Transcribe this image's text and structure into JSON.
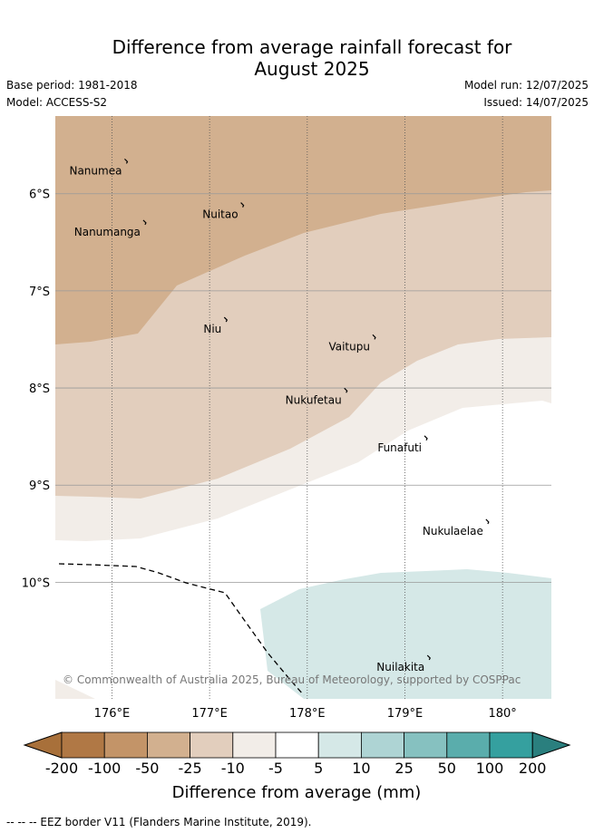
{
  "title": "Difference from average rainfall forecast for August 2025",
  "title_line1": "Difference from average rainfall forecast for",
  "title_line2": "August 2025",
  "base_period": "Base period: 1981-2018",
  "model": "Model: ACCESS-S2",
  "model_run": "Model run: 12/07/2025",
  "issued": "Issued: 14/07/2025",
  "copyright": "© Commonwealth of Australia 2025, Bureau of Meteorology, supported by COSPPac",
  "footnote": "-- --  -- EEZ border V11 (Flanders Marine Institute, 2019).",
  "map": {
    "lon_range": [
      175.42,
      180.5
    ],
    "lat_range": [
      -11.2,
      -5.2
    ],
    "lon_ticks": [
      {
        "value": 176,
        "label": "176°E"
      },
      {
        "value": 177,
        "label": "177°E"
      },
      {
        "value": 178,
        "label": "178°E"
      },
      {
        "value": 179,
        "label": "179°E"
      },
      {
        "value": 180,
        "label": "180°"
      }
    ],
    "lat_ticks": [
      {
        "value": -6,
        "label": "6°S"
      },
      {
        "value": -7,
        "label": "7°S"
      },
      {
        "value": -8,
        "label": "8°S"
      },
      {
        "value": -9,
        "label": "9°S"
      },
      {
        "value": -10,
        "label": "10°S"
      }
    ],
    "places": [
      {
        "name": "Nanumea",
        "lon": 176.13,
        "lat": -5.67
      },
      {
        "name": "Nuitao",
        "lon": 177.32,
        "lat": -6.12
      },
      {
        "name": "Nanumanga",
        "lon": 176.32,
        "lat": -6.3
      },
      {
        "name": "Niu",
        "lon": 177.15,
        "lat": -7.3
      },
      {
        "name": "Vaitupu",
        "lon": 178.67,
        "lat": -7.48
      },
      {
        "name": "Nukufetau",
        "lon": 178.38,
        "lat": -8.03
      },
      {
        "name": "Funafuti",
        "lon": 179.2,
        "lat": -8.52
      },
      {
        "name": "Nukulaelae",
        "lon": 179.83,
        "lat": -9.38
      },
      {
        "name": "Nuilakita",
        "lon": 179.23,
        "lat": -10.78
      }
    ]
  },
  "colorbar": {
    "title": "Difference from average (mm)",
    "boundaries": [
      "-200",
      "-100",
      "-50",
      "-25",
      "-10",
      "-5",
      "5",
      "10",
      "25",
      "50",
      "100",
      "200"
    ],
    "colors": [
      "#a8703a",
      "#b07845",
      "#c39468",
      "#d2b08f",
      "#e2cebd",
      "#f2ede8",
      "#ffffff",
      "#d5e8e7",
      "#aed4d4",
      "#86c1c0",
      "#5aadac",
      "#35a09f",
      "#2a7f7e"
    ]
  }
}
